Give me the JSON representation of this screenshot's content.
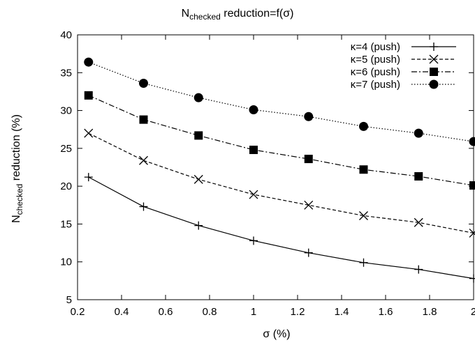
{
  "chart_data": {
    "type": "line",
    "title": {
      "base": "N",
      "sub": "checked",
      "rest": " reduction=f(σ)"
    },
    "xlabel": "σ (%)",
    "ylabel": {
      "base": "N",
      "sub": "checked",
      "rest": " reduction (%)"
    },
    "xlim": [
      0.2,
      2
    ],
    "ylim": [
      5,
      40
    ],
    "xticks": [
      0.2,
      0.4,
      0.6,
      0.8,
      1,
      1.2,
      1.4,
      1.6,
      1.8,
      2
    ],
    "xtick_labels": [
      "0.2",
      "0.4",
      "0.6",
      "0.8",
      "1",
      "1.2",
      "1.4",
      "1.6",
      "1.8",
      "2"
    ],
    "yticks": [
      5,
      10,
      15,
      20,
      25,
      30,
      35,
      40
    ],
    "ytick_labels": [
      "5",
      "10",
      "15",
      "20",
      "25",
      "30",
      "35",
      "40"
    ],
    "grid": false,
    "legend_position": "top-right",
    "x": [
      0.25,
      0.5,
      0.75,
      1,
      1.25,
      1.5,
      1.75,
      2
    ],
    "series": [
      {
        "name": "κ=4 (push)",
        "marker": "plus",
        "dash": "solid",
        "values": [
          21.2,
          17.3,
          14.8,
          12.8,
          11.2,
          9.9,
          9.0,
          7.8
        ]
      },
      {
        "name": "κ=5 (push)",
        "marker": "cross",
        "dash": "dashed",
        "values": [
          27.0,
          23.4,
          20.9,
          18.9,
          17.5,
          16.1,
          15.2,
          13.8
        ]
      },
      {
        "name": "κ=6 (push)",
        "marker": "square",
        "dash": "dashdot",
        "values": [
          32.0,
          28.8,
          26.7,
          24.8,
          23.6,
          22.2,
          21.3,
          20.1
        ]
      },
      {
        "name": "κ=7 (push)",
        "marker": "circle",
        "dash": "dotted",
        "values": [
          36.4,
          33.6,
          31.7,
          30.1,
          29.2,
          27.9,
          27.0,
          25.9
        ]
      }
    ]
  }
}
